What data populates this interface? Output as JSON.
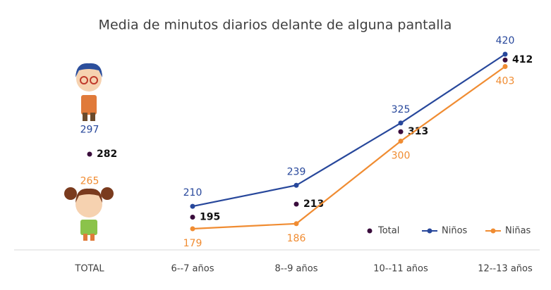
{
  "chart_data": {
    "type": "line",
    "title": "Media de minutos diarios delante de alguna pantalla",
    "categories": [
      "TOTAL",
      "6--7 años",
      "8--9 años",
      "10--11 años",
      "12--13 años"
    ],
    "series": [
      {
        "name": "Total",
        "color": "#3a0d3c",
        "values": [
          282,
          195,
          213,
          313,
          412
        ],
        "markers_only": true
      },
      {
        "name": "Niños",
        "color": "#27479b",
        "values": [
          297,
          210,
          239,
          325,
          420
        ]
      },
      {
        "name": "Niñas",
        "color": "#f08c32",
        "values": [
          265,
          179,
          186,
          300,
          403
        ]
      }
    ],
    "legend": "lower right"
  }
}
